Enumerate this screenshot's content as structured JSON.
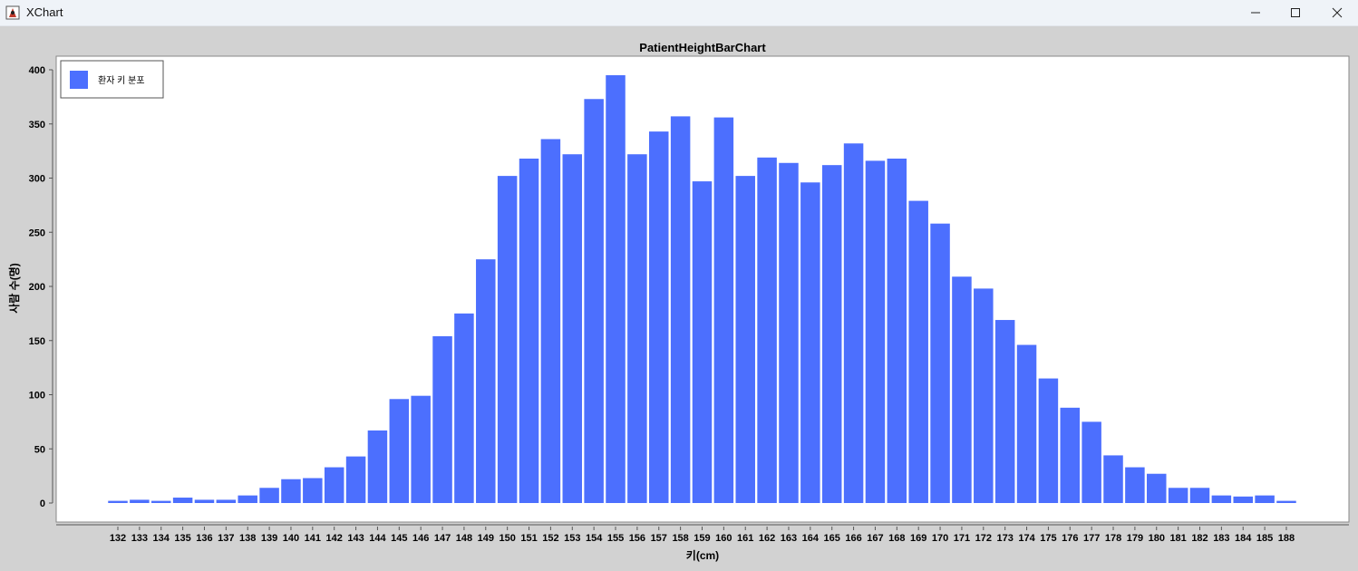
{
  "window": {
    "title": "XChart",
    "minimize_icon": "minimize-icon",
    "maximize_icon": "maximize-icon",
    "close_icon": "close-icon",
    "app_icon": "java-duke-icon"
  },
  "chart_data": {
    "type": "bar",
    "title": "PatientHeightBarChart",
    "xlabel": "키(cm)",
    "ylabel": "사람 수(명)",
    "ylim": [
      0,
      400
    ],
    "yticks": [
      0,
      50,
      100,
      150,
      200,
      250,
      300,
      350,
      400
    ],
    "grid": false,
    "legend_position": "top-left",
    "bar_color": "#4c6ffe",
    "background": "#ffffff",
    "categories": [
      "132",
      "133",
      "134",
      "135",
      "136",
      "137",
      "138",
      "139",
      "140",
      "141",
      "142",
      "143",
      "144",
      "145",
      "146",
      "147",
      "148",
      "149",
      "150",
      "151",
      "152",
      "153",
      "154",
      "155",
      "156",
      "157",
      "158",
      "159",
      "160",
      "161",
      "162",
      "163",
      "164",
      "165",
      "166",
      "167",
      "168",
      "169",
      "170",
      "171",
      "172",
      "173",
      "174",
      "175",
      "176",
      "177",
      "178",
      "179",
      "180",
      "181",
      "182",
      "183",
      "184",
      "185",
      "188"
    ],
    "series": [
      {
        "name": "환자 키 분포",
        "values": [
          2,
          3,
          2,
          5,
          3,
          3,
          7,
          14,
          22,
          23,
          33,
          43,
          67,
          96,
          99,
          154,
          175,
          225,
          302,
          318,
          336,
          322,
          373,
          395,
          322,
          343,
          357,
          297,
          356,
          302,
          319,
          314,
          296,
          312,
          332,
          316,
          318,
          279,
          258,
          209,
          198,
          169,
          146,
          115,
          88,
          75,
          44,
          33,
          27,
          14,
          14,
          7,
          6,
          7,
          2
        ]
      }
    ]
  }
}
